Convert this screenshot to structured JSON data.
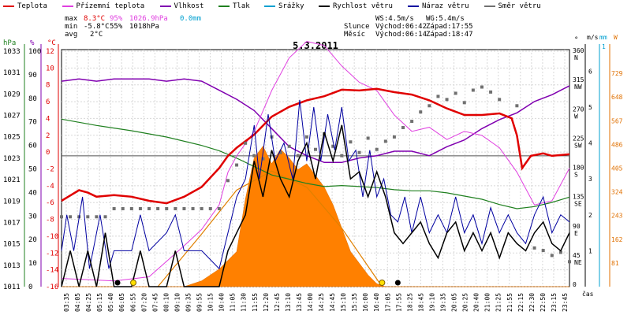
{
  "chart_data": {
    "type": "line",
    "title": "5.3.2011",
    "time_unit": "čas",
    "x_ticks": [
      "03:35",
      "04:05",
      "04:25",
      "05:15",
      "05:40",
      "06:05",
      "06:55",
      "07:20",
      "07:45",
      "08:10",
      "09:10",
      "09:35",
      "09:55",
      "10:15",
      "10:40",
      "11:05",
      "11:30",
      "11:55",
      "12:20",
      "12:45",
      "13:10",
      "13:45",
      "14:00",
      "14:25",
      "14:45",
      "15:10",
      "15:35",
      "16:00",
      "16:40",
      "17:05",
      "17:55",
      "18:25",
      "18:45",
      "19:10",
      "19:35",
      "20:05",
      "20:25",
      "20:40",
      "21:00",
      "21:25",
      "21:55",
      "22:15",
      "22:30",
      "22:50",
      "23:15",
      "23:45"
    ],
    "legend": [
      {
        "name": "Teplota",
        "color": "#e00000"
      },
      {
        "name": "Přízemní teplota",
        "color": "#e040e0"
      },
      {
        "name": "Vlhkost",
        "color": "#8000b0"
      },
      {
        "name": "Tlak",
        "color": "#208020"
      },
      {
        "name": "Srážky",
        "color": "#00a0d0"
      },
      {
        "name": "Rychlost větru",
        "color": "#000000"
      },
      {
        "name": "Náraz větru",
        "color": "#0000a0"
      },
      {
        "name": "Směr větru",
        "color": "#707070"
      }
    ],
    "stats": {
      "max_label": "max",
      "min_label": "min",
      "avg_label": "avg",
      "max_temp": "8.3°C",
      "max_hum": "95%",
      "max_press": "1026.9hPa",
      "max_rain": "0.0mm",
      "min_temp": "-5.8°C",
      "min_hum": "55%",
      "min_press": "1018hPa",
      "avg_temp": "2°C"
    },
    "info": {
      "ws": "WS:4.5m/s",
      "wg": "WG:5.4m/s",
      "sun_label": "Slunce",
      "sun_rise": "Východ:06:42",
      "sun_set": "Západ:17:55",
      "moon_label": "Měsíc",
      "moon_rise": "Východ:06:14",
      "moon_set": "Západ:18:47"
    },
    "axes": {
      "hpa": {
        "unit": "hPa",
        "ticks": [
          "1033",
          "1031",
          "1029",
          "1027",
          "1025",
          "1023",
          "1021",
          "1019",
          "1017",
          "1015",
          "1013",
          "1011"
        ]
      },
      "pct": {
        "unit": "%",
        "ticks": [
          "100",
          "90",
          "80",
          "70",
          "60",
          "50",
          "40",
          "30",
          "20",
          "10",
          "0"
        ]
      },
      "temp": {
        "unit": "°C",
        "ticks": [
          "12",
          "10",
          "8",
          "6",
          "4",
          "2",
          "0",
          "-2",
          "-4",
          "-6",
          "-8",
          "-10",
          "-12",
          "-14",
          "-16"
        ]
      },
      "dir": {
        "unit": "°",
        "ticks": [
          "360",
          "315",
          "270",
          "225",
          "180",
          "135",
          "90",
          "45",
          "0"
        ],
        "names": [
          "N",
          "NW",
          "W",
          "SW",
          "S",
          "SE",
          "E",
          "NE",
          ""
        ]
      },
      "ms": {
        "unit": "m/s",
        "ticks": [
          "6",
          "5",
          "4",
          "3",
          "2",
          "1"
        ]
      },
      "mm": {
        "unit": "mm",
        "ticks": [
          "1"
        ]
      },
      "w": {
        "unit": "W",
        "ticks": [
          "729",
          "648",
          "567",
          "486",
          "405",
          "324",
          "243",
          "162",
          "81"
        ]
      }
    },
    "temperature_c": [
      [
        0,
        -5.5
      ],
      [
        1,
        -4.2
      ],
      [
        1.5,
        -4.5
      ],
      [
        2,
        -5
      ],
      [
        3,
        -4.8
      ],
      [
        4,
        -5
      ],
      [
        5,
        -5.5
      ],
      [
        6,
        -5.8
      ],
      [
        7,
        -5
      ],
      [
        8,
        -3.8
      ],
      [
        9,
        -1.5
      ],
      [
        9.5,
        0
      ],
      [
        10,
        1
      ],
      [
        11,
        2.6
      ],
      [
        12,
        4.8
      ],
      [
        13,
        6
      ],
      [
        14,
        6.8
      ],
      [
        15,
        7.3
      ],
      [
        16,
        8.1
      ],
      [
        17,
        8
      ],
      [
        18,
        8.2
      ],
      [
        19,
        7.8
      ],
      [
        20,
        7.5
      ],
      [
        21,
        6.8
      ],
      [
        22,
        5.8
      ],
      [
        23,
        5
      ],
      [
        24,
        5
      ],
      [
        25,
        5.2
      ],
      [
        25.7,
        4.6
      ],
      [
        26,
        2.5
      ],
      [
        26.3,
        -1.5
      ],
      [
        26.8,
        0
      ],
      [
        27.5,
        0.3
      ],
      [
        28,
        0
      ],
      [
        29,
        0.2
      ]
    ],
    "ground_temp_c": [
      [
        0,
        -15
      ],
      [
        3,
        -15.3
      ],
      [
        5,
        -14.8
      ],
      [
        7,
        -11
      ],
      [
        8,
        -9
      ],
      [
        9,
        -6
      ],
      [
        9.5,
        -2
      ],
      [
        10,
        0
      ],
      [
        11,
        3
      ],
      [
        12,
        8
      ],
      [
        13,
        12
      ],
      [
        14,
        14
      ],
      [
        15,
        13.5
      ],
      [
        16,
        11
      ],
      [
        17,
        9
      ],
      [
        18,
        8
      ],
      [
        19,
        5
      ],
      [
        20,
        3
      ],
      [
        21,
        3.5
      ],
      [
        22,
        2
      ],
      [
        23,
        3
      ],
      [
        24,
        2.5
      ],
      [
        25,
        1
      ],
      [
        26,
        -2
      ],
      [
        27,
        -6
      ],
      [
        28,
        -5.5
      ],
      [
        29,
        -1.5
      ]
    ],
    "humidity_pct": [
      [
        0,
        91
      ],
      [
        1,
        92
      ],
      [
        2,
        91
      ],
      [
        3,
        92
      ],
      [
        4,
        92
      ],
      [
        5,
        92
      ],
      [
        6,
        91
      ],
      [
        7,
        92
      ],
      [
        8,
        91
      ],
      [
        9,
        87
      ],
      [
        10,
        83
      ],
      [
        11,
        78
      ],
      [
        12,
        70
      ],
      [
        13,
        62
      ],
      [
        14,
        58
      ],
      [
        15,
        55
      ],
      [
        16,
        55
      ],
      [
        17,
        57
      ],
      [
        18,
        58
      ],
      [
        19,
        60
      ],
      [
        20,
        60
      ],
      [
        21,
        58
      ],
      [
        22,
        62
      ],
      [
        23,
        65
      ],
      [
        24,
        70
      ],
      [
        25,
        74
      ],
      [
        26,
        77
      ],
      [
        27,
        82
      ],
      [
        28,
        85
      ],
      [
        29,
        89
      ]
    ],
    "pressure_hpa": [
      [
        0,
        1026.9
      ],
      [
        2,
        1026.3
      ],
      [
        4,
        1025.8
      ],
      [
        6,
        1025.2
      ],
      [
        8,
        1024.4
      ],
      [
        9,
        1023.9
      ],
      [
        10,
        1023.2
      ],
      [
        11,
        1022.4
      ],
      [
        12,
        1021.6
      ],
      [
        13,
        1021.2
      ],
      [
        14,
        1020.8
      ],
      [
        15,
        1020.5
      ],
      [
        16,
        1020.6
      ],
      [
        17,
        1020.5
      ],
      [
        18,
        1020.4
      ],
      [
        19,
        1020.2
      ],
      [
        20,
        1020.1
      ],
      [
        21,
        1020.1
      ],
      [
        22,
        1019.9
      ],
      [
        23,
        1019.6
      ],
      [
        24,
        1019.3
      ],
      [
        25,
        1018.8
      ],
      [
        26,
        1018.4
      ],
      [
        27,
        1018.6
      ],
      [
        28,
        1019
      ],
      [
        29,
        1019.5
      ]
    ],
    "wind_speed_ms": [
      [
        0,
        0
      ],
      [
        0.5,
        1
      ],
      [
        1,
        0
      ],
      [
        1.5,
        1
      ],
      [
        2,
        0
      ],
      [
        2.5,
        1.5
      ],
      [
        3,
        0
      ],
      [
        4,
        0
      ],
      [
        4.5,
        1
      ],
      [
        5,
        0
      ],
      [
        6,
        0
      ],
      [
        6.5,
        1
      ],
      [
        7,
        0
      ],
      [
        8,
        0
      ],
      [
        9,
        0
      ],
      [
        9.5,
        1
      ],
      [
        10,
        1.5
      ],
      [
        10.5,
        2
      ],
      [
        11,
        3.5
      ],
      [
        11.5,
        2.5
      ],
      [
        12,
        3.8
      ],
      [
        12.5,
        3
      ],
      [
        13,
        2.5
      ],
      [
        13.5,
        3.5
      ],
      [
        14,
        4
      ],
      [
        14.5,
        3
      ],
      [
        15,
        4.3
      ],
      [
        15.5,
        3.5
      ],
      [
        16,
        4.5
      ],
      [
        16.5,
        3
      ],
      [
        17,
        3.2
      ],
      [
        17.5,
        2.5
      ],
      [
        18,
        3.2
      ],
      [
        18.5,
        2.5
      ],
      [
        19,
        1.5
      ],
      [
        19.5,
        1.2
      ],
      [
        20,
        1.5
      ],
      [
        20.5,
        1.8
      ],
      [
        21,
        1.2
      ],
      [
        21.5,
        0.8
      ],
      [
        22,
        1.5
      ],
      [
        22.5,
        1.8
      ],
      [
        23,
        1
      ],
      [
        23.5,
        1.5
      ],
      [
        24,
        1
      ],
      [
        24.5,
        1.5
      ],
      [
        25,
        0.8
      ],
      [
        25.5,
        1.5
      ],
      [
        26,
        1.2
      ],
      [
        26.5,
        1
      ],
      [
        27,
        1.5
      ],
      [
        27.5,
        1.8
      ],
      [
        28,
        1.2
      ],
      [
        28.5,
        1
      ],
      [
        29,
        1.5
      ]
    ],
    "wind_gust_ms": [
      [
        0,
        1
      ],
      [
        0.3,
        2
      ],
      [
        0.7,
        1
      ],
      [
        1.2,
        2.5
      ],
      [
        1.6,
        0.5
      ],
      [
        2.2,
        2
      ],
      [
        2.7,
        0.5
      ],
      [
        3,
        1
      ],
      [
        4,
        1
      ],
      [
        4.5,
        2
      ],
      [
        5,
        1
      ],
      [
        6,
        1.5
      ],
      [
        6.5,
        2
      ],
      [
        7,
        1
      ],
      [
        8,
        1
      ],
      [
        9,
        0.5
      ],
      [
        9.5,
        1.5
      ],
      [
        10,
        2.5
      ],
      [
        10.5,
        3
      ],
      [
        11,
        4.5
      ],
      [
        11.3,
        3
      ],
      [
        11.8,
        4.8
      ],
      [
        12.2,
        3.5
      ],
      [
        12.7,
        4
      ],
      [
        13.2,
        3
      ],
      [
        13.6,
        5.2
      ],
      [
        14,
        3.5
      ],
      [
        14.4,
        5
      ],
      [
        14.8,
        3.5
      ],
      [
        15.2,
        4.8
      ],
      [
        15.6,
        3.8
      ],
      [
        16,
        5
      ],
      [
        16.4,
        3.5
      ],
      [
        16.8,
        3.8
      ],
      [
        17.2,
        2.5
      ],
      [
        17.6,
        3.8
      ],
      [
        18,
        2.5
      ],
      [
        18.4,
        3
      ],
      [
        18.8,
        2
      ],
      [
        19.2,
        1.8
      ],
      [
        19.6,
        2.5
      ],
      [
        20,
        1.5
      ],
      [
        20.5,
        2.5
      ],
      [
        21,
        1.5
      ],
      [
        21.5,
        2
      ],
      [
        22,
        1.5
      ],
      [
        22.5,
        2.5
      ],
      [
        23,
        1.5
      ],
      [
        23.5,
        2
      ],
      [
        24,
        1.2
      ],
      [
        24.5,
        2.2
      ],
      [
        25,
        1.5
      ],
      [
        25.5,
        2
      ],
      [
        26,
        1.5
      ],
      [
        26.5,
        1.2
      ],
      [
        27,
        2
      ],
      [
        27.5,
        2.5
      ],
      [
        28,
        1.5
      ],
      [
        28.5,
        2
      ],
      [
        29,
        1.8
      ]
    ],
    "wind_dir_deg": [
      [
        0,
        112
      ],
      [
        0.5,
        112
      ],
      [
        1,
        112
      ],
      [
        1.5,
        112
      ],
      [
        2,
        112
      ],
      [
        2.5,
        112
      ],
      [
        3,
        125
      ],
      [
        3.5,
        125
      ],
      [
        4,
        125
      ],
      [
        4.5,
        125
      ],
      [
        5,
        125
      ],
      [
        5.5,
        125
      ],
      [
        6,
        125
      ],
      [
        6.5,
        125
      ],
      [
        7,
        125
      ],
      [
        7.5,
        125
      ],
      [
        8,
        125
      ],
      [
        8.5,
        125
      ],
      [
        9,
        125
      ],
      [
        9.5,
        170
      ],
      [
        10,
        195
      ],
      [
        10.5,
        230
      ],
      [
        11,
        210
      ],
      [
        11.5,
        205
      ],
      [
        12,
        240
      ],
      [
        12.5,
        215
      ],
      [
        13,
        225
      ],
      [
        13.5,
        210
      ],
      [
        14,
        240
      ],
      [
        14.5,
        220
      ],
      [
        15,
        245
      ],
      [
        15.5,
        225
      ],
      [
        16,
        210
      ],
      [
        16.5,
        232
      ],
      [
        17,
        215
      ],
      [
        17.5,
        238
      ],
      [
        18,
        220
      ],
      [
        18.5,
        233
      ],
      [
        19,
        240
      ],
      [
        19.5,
        255
      ],
      [
        20,
        265
      ],
      [
        20.5,
        280
      ],
      [
        21,
        290
      ],
      [
        21.5,
        305
      ],
      [
        22,
        300
      ],
      [
        22.5,
        310
      ],
      [
        23,
        295
      ],
      [
        23.5,
        315
      ],
      [
        24,
        320
      ],
      [
        24.5,
        312
      ],
      [
        25,
        300
      ],
      [
        26,
        290
      ],
      [
        27,
        62
      ],
      [
        27.5,
        58
      ],
      [
        28,
        50
      ],
      [
        28.5,
        55
      ],
      [
        29,
        40
      ]
    ],
    "solar_w": [
      [
        0,
        0
      ],
      [
        5,
        0
      ],
      [
        6,
        0
      ],
      [
        7,
        0
      ],
      [
        8,
        20
      ],
      [
        9,
        60
      ],
      [
        10,
        120
      ],
      [
        10.5,
        300
      ],
      [
        11,
        440
      ],
      [
        11.5,
        480
      ],
      [
        12,
        420
      ],
      [
        12.5,
        470
      ],
      [
        13,
        440
      ],
      [
        13.5,
        400
      ],
      [
        14,
        420
      ],
      [
        14.5,
        380
      ],
      [
        15,
        340
      ],
      [
        15.5,
        280
      ],
      [
        16,
        200
      ],
      [
        16.5,
        120
      ],
      [
        17,
        80
      ],
      [
        17.5,
        40
      ],
      [
        18,
        10
      ],
      [
        18.5,
        0
      ],
      [
        29,
        0
      ]
    ],
    "sun_position": [
      [
        5.5,
        0
      ],
      [
        8,
        180
      ],
      [
        10,
        330
      ],
      [
        12,
        395
      ],
      [
        14,
        340
      ],
      [
        16,
        200
      ],
      [
        18.3,
        0
      ]
    ]
  }
}
